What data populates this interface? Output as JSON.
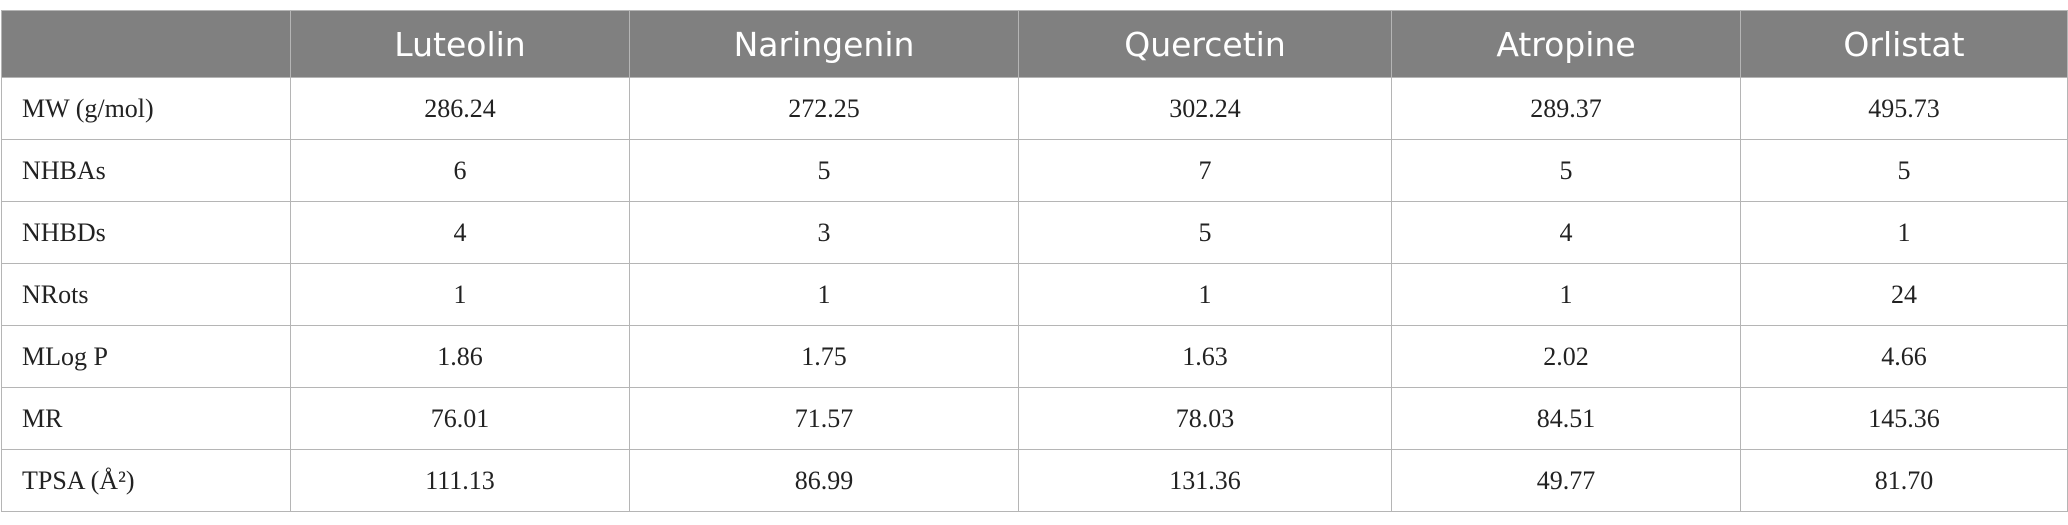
{
  "table": {
    "columns": [
      "Luteolin",
      "Naringenin",
      "Quercetin",
      "Atropine",
      "Orlistat"
    ],
    "rows": [
      [
        "MW (g/mol)",
        "286.24",
        "272.25",
        "302.24",
        "289.37",
        "495.73"
      ],
      [
        "NHBAs",
        "6",
        "5",
        "7",
        "5",
        "5"
      ],
      [
        "NHBDs",
        "4",
        "3",
        "5",
        "4",
        "1"
      ],
      [
        "NRots",
        "1",
        "1",
        "1",
        "1",
        "24"
      ],
      [
        "MLog P",
        "1.86",
        "1.75",
        "1.63",
        "2.02",
        "4.66"
      ],
      [
        "MR",
        "76.01",
        "71.57",
        "78.03",
        "84.51",
        "145.36"
      ],
      [
        "TPSA (Å²)",
        "111.13",
        "86.99",
        "131.36",
        "49.77",
        "81.70"
      ]
    ]
  }
}
